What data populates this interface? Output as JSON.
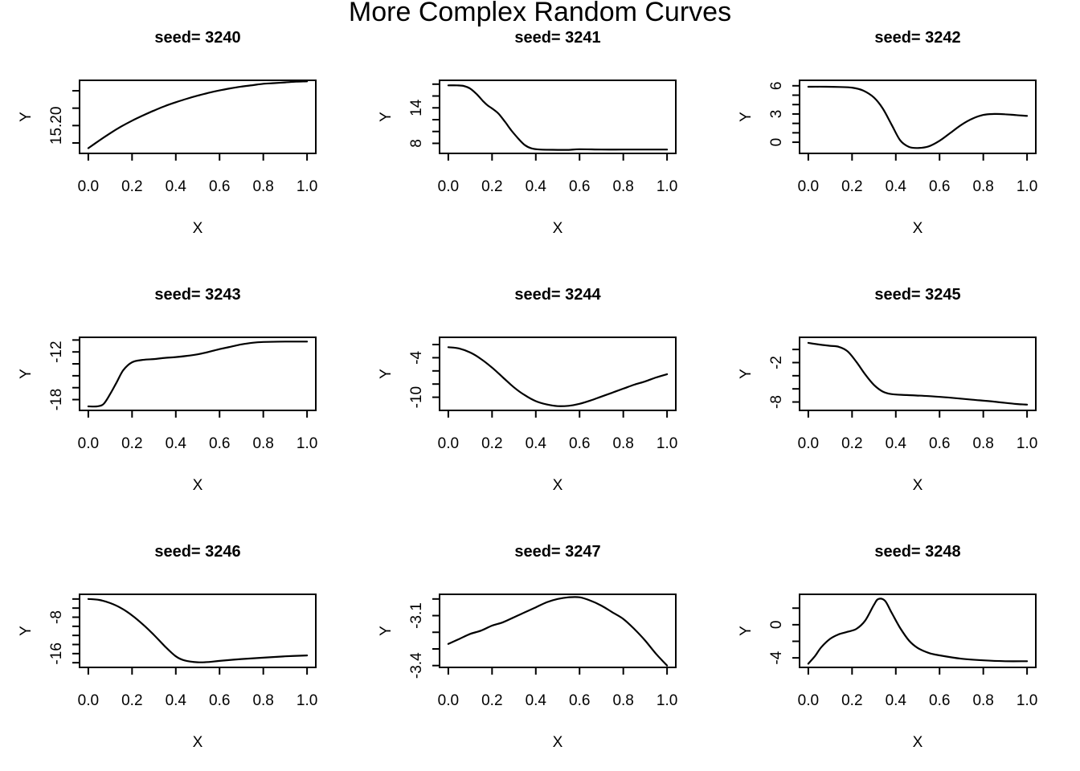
{
  "title": "More Complex Random Curves",
  "axis": {
    "xlabel": "X",
    "ylabel": "Y",
    "xlim": [
      -0.04,
      1.04
    ],
    "x_ticks": [
      0,
      0.2,
      0.4,
      0.6,
      0.8,
      1.0
    ],
    "x_tick_labels": [
      "0.0",
      "0.2",
      "0.4",
      "0.6",
      "0.8",
      "1.0"
    ]
  },
  "colors": {
    "line": "#000000",
    "text": "#000000",
    "background": "#ffffff"
  },
  "chart_data": [
    {
      "type": "line",
      "title": "seed= 3240",
      "xlabel": "X",
      "ylabel": "Y",
      "ylim": [
        15.12,
        15.33
      ],
      "yticks": [
        15.15,
        15.2,
        15.25,
        15.3
      ],
      "ytick_labels": [
        "",
        "15.20",
        "",
        ""
      ],
      "x": [
        0,
        0.05,
        0.1,
        0.15,
        0.2,
        0.25,
        0.3,
        0.35,
        0.4,
        0.45,
        0.5,
        0.55,
        0.6,
        0.65,
        0.7,
        0.75,
        0.8,
        0.85,
        0.9,
        0.95,
        1
      ],
      "y": [
        15.135,
        15.157,
        15.178,
        15.197,
        15.214,
        15.229,
        15.243,
        15.256,
        15.267,
        15.277,
        15.286,
        15.294,
        15.301,
        15.307,
        15.312,
        15.316,
        15.32,
        15.322,
        15.324,
        15.326,
        15.327
      ]
    },
    {
      "type": "line",
      "title": "seed= 3241",
      "xlabel": "X",
      "ylabel": "Y",
      "ylim": [
        6.3,
        18.65
      ],
      "yticks": [
        8,
        10,
        12,
        14,
        16,
        18
      ],
      "ytick_labels": [
        "8",
        "",
        "",
        "14",
        "",
        ""
      ],
      "x": [
        0,
        0.04,
        0.07,
        0.1,
        0.13,
        0.16,
        0.18,
        0.2,
        0.23,
        0.26,
        0.29,
        0.32,
        0.35,
        0.38,
        0.42,
        0.5,
        0.55,
        0.6,
        0.7,
        0.8,
        0.9,
        1
      ],
      "y": [
        17.8,
        17.8,
        17.7,
        17.25,
        16.3,
        15.1,
        14.4,
        13.9,
        13.0,
        11.6,
        10.1,
        8.8,
        7.7,
        7.15,
        6.95,
        6.9,
        6.9,
        7.0,
        6.95,
        6.95,
        6.95,
        6.95
      ]
    },
    {
      "type": "line",
      "title": "seed= 3242",
      "xlabel": "X",
      "ylabel": "Y",
      "ylim": [
        -1.19,
        6.58
      ],
      "yticks": [
        0,
        1,
        2,
        3,
        4,
        5,
        6
      ],
      "ytick_labels": [
        "0",
        "",
        "",
        "3",
        "",
        "",
        "6"
      ],
      "x": [
        0,
        0.08,
        0.14,
        0.2,
        0.25,
        0.3,
        0.34,
        0.38,
        0.42,
        0.46,
        0.5,
        0.55,
        0.6,
        0.65,
        0.7,
        0.75,
        0.8,
        0.85,
        0.9,
        0.95,
        1
      ],
      "y": [
        5.9,
        5.9,
        5.87,
        5.8,
        5.5,
        4.75,
        3.6,
        1.9,
        0.2,
        -0.5,
        -0.62,
        -0.45,
        0.15,
        1.0,
        1.85,
        2.5,
        2.9,
        3.0,
        2.97,
        2.88,
        2.8
      ]
    },
    {
      "type": "line",
      "title": "seed= 3243",
      "xlabel": "X",
      "ylabel": "Y",
      "ylim": [
        -19.36,
        -10.16
      ],
      "yticks": [
        -18,
        -16.5,
        -15,
        -13.5,
        -12,
        -10.5
      ],
      "ytick_labels": [
        "-18",
        "",
        "",
        "",
        "-12",
        ""
      ],
      "x": [
        0,
        0.04,
        0.07,
        0.1,
        0.13,
        0.16,
        0.2,
        0.25,
        0.3,
        0.35,
        0.4,
        0.45,
        0.5,
        0.55,
        0.6,
        0.65,
        0.7,
        0.75,
        0.8,
        0.9,
        1
      ],
      "y": [
        -18.85,
        -18.85,
        -18.55,
        -17.3,
        -15.8,
        -14.3,
        -13.3,
        -13.0,
        -12.9,
        -12.75,
        -12.65,
        -12.5,
        -12.3,
        -12.0,
        -11.65,
        -11.35,
        -11.05,
        -10.85,
        -10.75,
        -10.7,
        -10.7
      ]
    },
    {
      "type": "line",
      "title": "seed= 3244",
      "xlabel": "X",
      "ylabel": "Y",
      "ylim": [
        -12.0,
        -0.9
      ],
      "yticks": [
        -10,
        -8,
        -6,
        -4,
        -2
      ],
      "ytick_labels": [
        "-10",
        "",
        "",
        "-4",
        ""
      ],
      "x": [
        0,
        0.05,
        0.1,
        0.15,
        0.2,
        0.25,
        0.3,
        0.35,
        0.4,
        0.45,
        0.5,
        0.55,
        0.6,
        0.65,
        0.7,
        0.75,
        0.8,
        0.85,
        0.9,
        0.95,
        1
      ],
      "y": [
        -2.4,
        -2.6,
        -3.2,
        -4.2,
        -5.5,
        -7.0,
        -8.5,
        -9.7,
        -10.6,
        -11.1,
        -11.35,
        -11.3,
        -11.0,
        -10.5,
        -9.9,
        -9.3,
        -8.7,
        -8.1,
        -7.6,
        -7.0,
        -6.5
      ]
    },
    {
      "type": "line",
      "title": "seed= 3245",
      "xlabel": "X",
      "ylabel": "Y",
      "ylim": [
        -9.28,
        1.85
      ],
      "yticks": [
        -8,
        -6,
        -4,
        -2,
        0
      ],
      "ytick_labels": [
        "-8",
        "",
        "",
        "-2",
        ""
      ],
      "x": [
        0,
        0.05,
        0.1,
        0.14,
        0.18,
        0.22,
        0.26,
        0.3,
        0.34,
        0.38,
        0.45,
        0.55,
        0.65,
        0.75,
        0.85,
        0.95,
        1
      ],
      "y": [
        1.0,
        0.75,
        0.55,
        0.4,
        -0.3,
        -1.9,
        -3.8,
        -5.4,
        -6.4,
        -6.8,
        -6.95,
        -7.1,
        -7.35,
        -7.65,
        -7.95,
        -8.3,
        -8.4
      ]
    },
    {
      "type": "line",
      "title": "seed= 3246",
      "xlabel": "X",
      "ylabel": "Y",
      "ylim": [
        -19.03,
        -2.97
      ],
      "yticks": [
        -18,
        -16,
        -14,
        -12,
        -10,
        -8,
        -6,
        -4
      ],
      "ytick_labels": [
        "",
        "-16",
        "",
        "",
        "",
        "-8",
        "",
        ""
      ],
      "x": [
        0,
        0.05,
        0.1,
        0.15,
        0.2,
        0.25,
        0.3,
        0.35,
        0.4,
        0.44,
        0.5,
        0.55,
        0.6,
        0.7,
        0.8,
        0.9,
        1
      ],
      "y": [
        -4.0,
        -4.2,
        -4.9,
        -6.0,
        -7.6,
        -9.6,
        -11.9,
        -14.4,
        -16.6,
        -17.5,
        -17.9,
        -17.85,
        -17.6,
        -17.2,
        -16.9,
        -16.6,
        -16.4
      ]
    },
    {
      "type": "line",
      "title": "seed= 3247",
      "xlabel": "X",
      "ylabel": "Y",
      "ylim": [
        -3.411,
        -2.972
      ],
      "yticks": [
        -3.4,
        -3.3,
        -3.2,
        -3.1,
        -3.0
      ],
      "ytick_labels": [
        "-3.4",
        "",
        "",
        "-3.1",
        ""
      ],
      "x": [
        0,
        0.05,
        0.1,
        0.15,
        0.2,
        0.25,
        0.3,
        0.35,
        0.4,
        0.45,
        0.5,
        0.55,
        0.6,
        0.65,
        0.7,
        0.75,
        0.8,
        0.85,
        0.9,
        0.95,
        1
      ],
      "y": [
        -3.27,
        -3.24,
        -3.21,
        -3.19,
        -3.16,
        -3.14,
        -3.11,
        -3.08,
        -3.05,
        -3.02,
        -3.0,
        -2.99,
        -2.99,
        -3.01,
        -3.04,
        -3.08,
        -3.12,
        -3.18,
        -3.25,
        -3.33,
        -3.4
      ]
    },
    {
      "type": "line",
      "title": "seed= 3248",
      "xlabel": "X",
      "ylabel": "Y",
      "ylim": [
        -5.15,
        3.67
      ],
      "yticks": [
        -4,
        -2,
        0,
        2
      ],
      "ytick_labels": [
        "-4",
        "",
        "0",
        ""
      ],
      "x": [
        0,
        0.03,
        0.06,
        0.1,
        0.14,
        0.18,
        0.22,
        0.26,
        0.3,
        0.32,
        0.35,
        0.38,
        0.42,
        0.46,
        0.5,
        0.55,
        0.6,
        0.7,
        0.8,
        0.9,
        1
      ],
      "y": [
        -4.7,
        -3.8,
        -2.7,
        -1.7,
        -1.15,
        -0.85,
        -0.5,
        0.5,
        2.4,
        3.1,
        2.9,
        1.5,
        -0.4,
        -1.9,
        -2.8,
        -3.4,
        -3.7,
        -4.1,
        -4.3,
        -4.4,
        -4.4
      ]
    }
  ]
}
